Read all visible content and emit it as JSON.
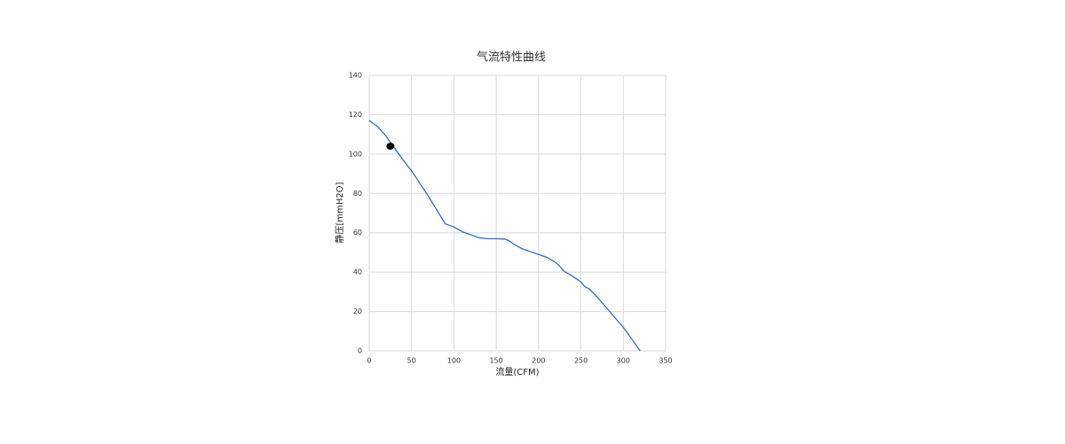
{
  "chart_data": {
    "type": "line",
    "title": "气流特性曲线",
    "x_label": "流量(CFM)",
    "y_label": "静压[mmH2O]",
    "x": [
      0,
      10,
      20,
      30,
      40,
      50,
      60,
      70,
      80,
      90,
      100,
      110,
      120,
      130,
      140,
      150,
      160,
      165,
      170,
      180,
      190,
      200,
      210,
      220,
      225,
      230,
      240,
      250,
      255,
      260,
      270,
      280,
      290,
      300,
      310,
      320
    ],
    "values": [
      117,
      114,
      109,
      103,
      97,
      91.5,
      85,
      78.5,
      71.5,
      64.5,
      63,
      60.5,
      59,
      57.5,
      57,
      57,
      56.8,
      56,
      54.5,
      52,
      50.5,
      49,
      47.5,
      45,
      43,
      40.5,
      38,
      35,
      32.5,
      31.5,
      27,
      22,
      17,
      12,
      6,
      0
    ],
    "color": "#2e6bc4",
    "marker": {
      "x": 25,
      "y": 104,
      "color": "#000000"
    },
    "xlim": [
      0,
      350
    ],
    "xticks": [
      0,
      50,
      100,
      150,
      200,
      250,
      300,
      350
    ],
    "ylim": [
      0,
      140
    ],
    "yticks": [
      0,
      20,
      40,
      60,
      80,
      100,
      120,
      140
    ],
    "grid": true
  }
}
